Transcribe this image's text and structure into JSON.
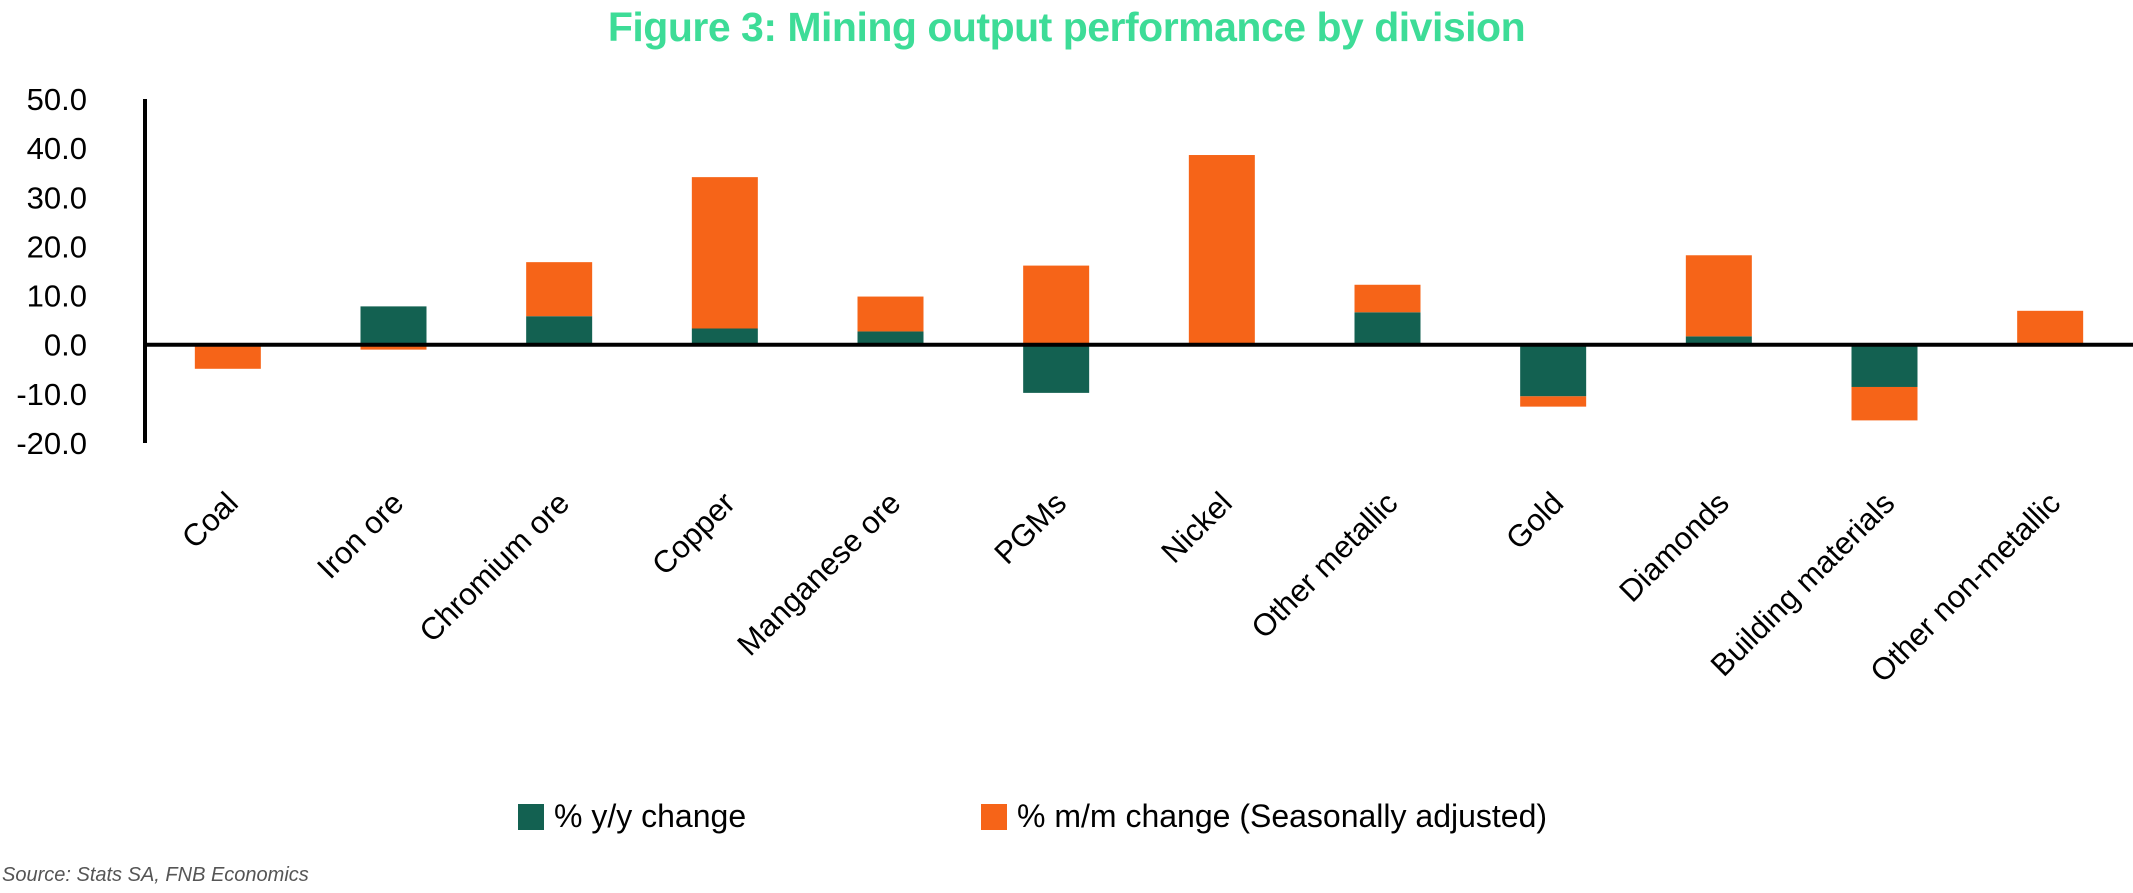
{
  "chart_data": {
    "type": "bar",
    "stacked": true,
    "title": "Figure 3: Mining output performance by division",
    "categories": [
      "Coal",
      "Iron ore",
      "Chromium ore",
      "Copper",
      "Manganese ore",
      "PGMs",
      "Nickel",
      "Other metallic",
      "Gold",
      "Diamonds",
      "Building materials",
      "Other non-metallic"
    ],
    "series": [
      {
        "name": "% y/y change",
        "color": "#136151",
        "values": [
          0.0,
          7.8,
          5.8,
          3.3,
          2.7,
          -9.8,
          0.3,
          6.6,
          -10.5,
          1.7,
          -8.6,
          0.0
        ]
      },
      {
        "name": "% m/m change (Seasonally adjusted)",
        "color": "#f66418",
        "values": [
          -4.9,
          -1.0,
          11.0,
          30.8,
          7.1,
          16.1,
          38.3,
          5.6,
          -2.1,
          16.5,
          -6.8,
          6.9
        ]
      }
    ],
    "ylim": [
      -20,
      50
    ],
    "yticks": [
      "50.0",
      "40.0",
      "30.0",
      "20.0",
      "10.0",
      "0.0",
      "-10.0",
      "-20.0"
    ],
    "legend_position": "bottom",
    "grid": false
  },
  "source_note": "Source: Stats SA, FNB Economics"
}
